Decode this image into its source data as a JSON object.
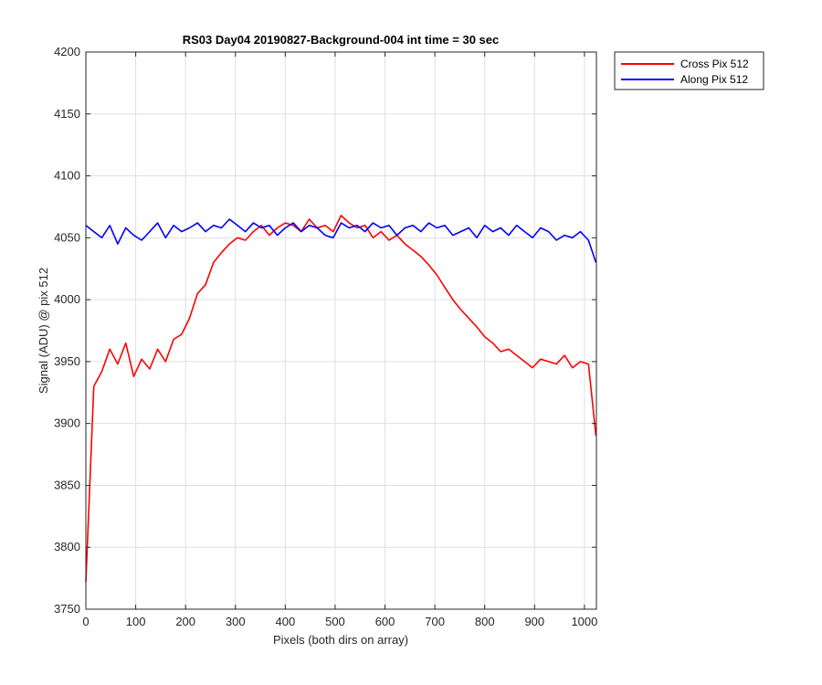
{
  "chart_data": {
    "type": "line",
    "title": "RS03 Day04 20190827-Background-004 int time = 30 sec",
    "xlabel": "Pixels (both dirs on array)",
    "ylabel": "Signal (ADU) @ pix 512",
    "xlim": [
      0,
      1024
    ],
    "ylim": [
      3750,
      4200
    ],
    "x_ticks": [
      0,
      100,
      200,
      300,
      400,
      500,
      600,
      700,
      800,
      900,
      1000
    ],
    "y_ticks": [
      3750,
      3800,
      3850,
      3900,
      3950,
      4000,
      4050,
      4100,
      4150,
      4200
    ],
    "grid": true,
    "legend_position": "outside-top-right",
    "x": [
      0,
      16,
      32,
      48,
      64,
      80,
      96,
      112,
      128,
      144,
      160,
      176,
      192,
      208,
      224,
      240,
      256,
      272,
      288,
      304,
      320,
      336,
      352,
      368,
      384,
      400,
      416,
      432,
      448,
      464,
      480,
      496,
      512,
      528,
      544,
      560,
      576,
      592,
      608,
      624,
      640,
      656,
      672,
      688,
      704,
      720,
      736,
      752,
      768,
      784,
      800,
      816,
      832,
      848,
      864,
      880,
      896,
      912,
      928,
      944,
      960,
      976,
      992,
      1008,
      1023
    ],
    "series": [
      {
        "name": "Cross Pix 512",
        "color": "#ff0000",
        "values": [
          3772,
          3930,
          3942,
          3960,
          3948,
          3965,
          3938,
          3952,
          3944,
          3960,
          3950,
          3968,
          3972,
          3985,
          4005,
          4012,
          4030,
          4038,
          4045,
          4050,
          4048,
          4055,
          4060,
          4052,
          4058,
          4062,
          4060,
          4055,
          4065,
          4058,
          4060,
          4055,
          4068,
          4062,
          4058,
          4060,
          4050,
          4055,
          4048,
          4052,
          4045,
          4040,
          4035,
          4028,
          4020,
          4010,
          4000,
          3992,
          3985,
          3978,
          3970,
          3965,
          3958,
          3960,
          3955,
          3950,
          3945,
          3952,
          3950,
          3948,
          3955,
          3945,
          3950,
          3948,
          3890
        ]
      },
      {
        "name": "Along Pix 512",
        "color": "#0000ff",
        "values": [
          4060,
          4055,
          4050,
          4060,
          4045,
          4058,
          4052,
          4048,
          4055,
          4062,
          4050,
          4060,
          4055,
          4058,
          4062,
          4055,
          4060,
          4058,
          4065,
          4060,
          4055,
          4062,
          4058,
          4060,
          4052,
          4058,
          4062,
          4055,
          4060,
          4058,
          4052,
          4050,
          4062,
          4058,
          4060,
          4055,
          4062,
          4058,
          4060,
          4052,
          4058,
          4060,
          4055,
          4062,
          4058,
          4060,
          4052,
          4055,
          4058,
          4050,
          4060,
          4055,
          4058,
          4052,
          4060,
          4055,
          4050,
          4058,
          4055,
          4048,
          4052,
          4050,
          4055,
          4048,
          4030
        ]
      }
    ]
  }
}
